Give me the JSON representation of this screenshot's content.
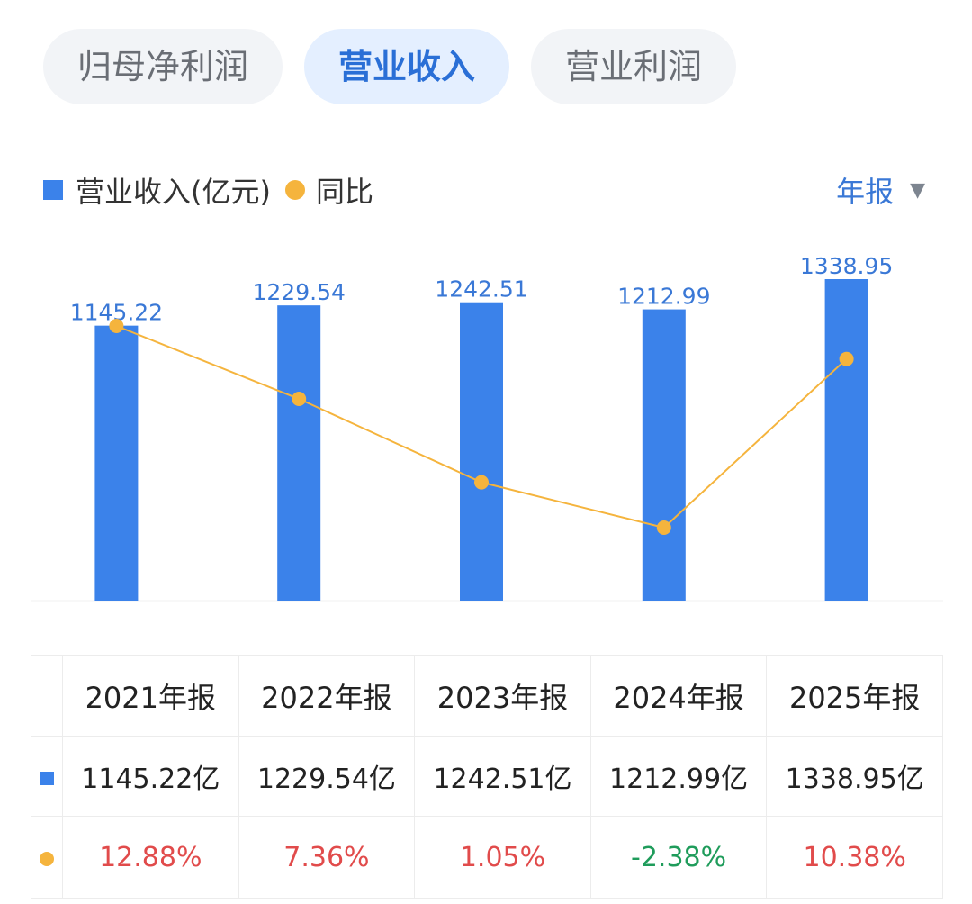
{
  "tabs": [
    {
      "label": "归母净利润",
      "active": false
    },
    {
      "label": "营业收入",
      "active": true
    },
    {
      "label": "营业利润",
      "active": false
    }
  ],
  "legend": {
    "bar_label": "营业收入(亿元)",
    "line_label": "同比"
  },
  "period_selector": {
    "label": "年报",
    "icon": "caret-down-icon"
  },
  "colors": {
    "bar": "#3b82ea",
    "line": "#f5b43d",
    "positive": "#e14b4b",
    "negative": "#1f9c5b",
    "accent": "#2a6fd6"
  },
  "chart_data": {
    "type": "bar",
    "categories": [
      "2021年报",
      "2022年报",
      "2023年报",
      "2024年报",
      "2025年报"
    ],
    "series": [
      {
        "name": "营业收入(亿元)",
        "type": "bar",
        "values": [
          1145.22,
          1229.54,
          1242.51,
          1212.99,
          1338.95
        ]
      },
      {
        "name": "同比",
        "type": "line",
        "values": [
          12.88,
          7.36,
          1.05,
          -2.38,
          10.38
        ],
        "unit": "%"
      }
    ],
    "data_labels": [
      "1145.22",
      "1229.54",
      "1242.51",
      "1212.99",
      "1338.95"
    ],
    "grid": false,
    "legend_position": "top-left"
  },
  "table": {
    "headers": [
      "2021年报",
      "2022年报",
      "2023年报",
      "2024年报",
      "2025年报"
    ],
    "revenue": [
      "1145.22亿",
      "1229.54亿",
      "1242.51亿",
      "1212.99亿",
      "1338.95亿"
    ],
    "yoy": [
      "12.88%",
      "7.36%",
      "1.05%",
      "-2.38%",
      "10.38%"
    ]
  }
}
